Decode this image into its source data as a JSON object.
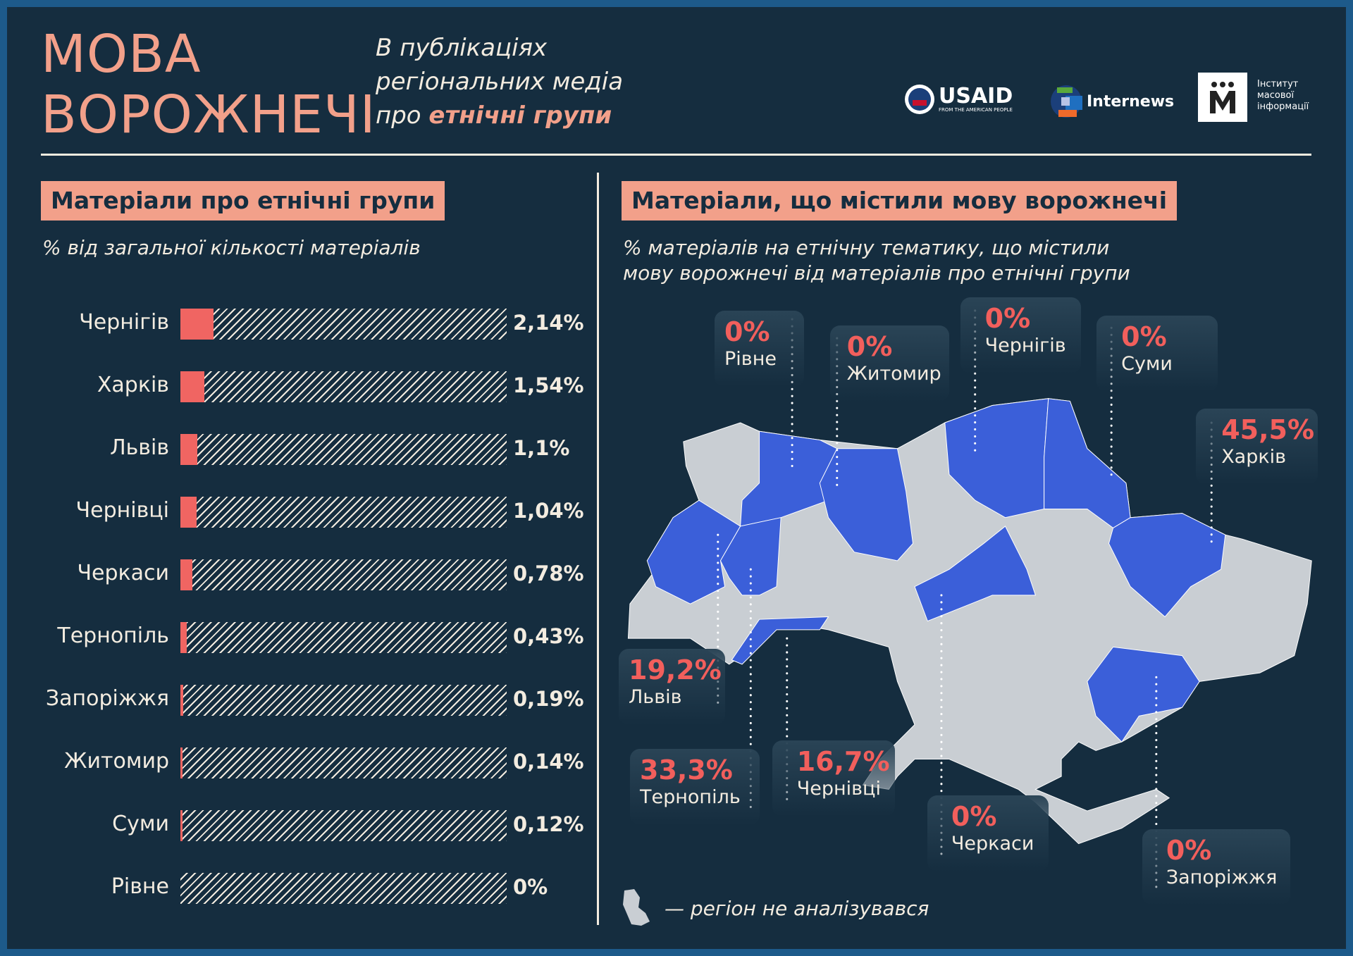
{
  "header": {
    "title_line1": "МОВА",
    "title_line2": "ВОРОЖНЕЧІ",
    "subtitle_line1": "В публікаціях",
    "subtitle_line2": "регіональних медіа",
    "subtitle_line3_prefix": "про ",
    "subtitle_line3_bold": "етнічні групи",
    "logos": {
      "usaid": "USAID",
      "usaid_tag": "FROM THE AMERICAN PEOPLE",
      "internews": "Internews",
      "imi_line1": "Інститут",
      "imi_line2": "масової",
      "imi_line3": "інформації"
    }
  },
  "left_panel": {
    "heading": "Матеріали про етнічні групи",
    "note": "% від загальної кількості матеріалів"
  },
  "right_panel": {
    "heading": "Матеріали, що містили мову ворожнечі",
    "note_line1": "% матеріалів на етнічну тематику, що містили",
    "note_line2": "мову ворожнечі від матеріалів про етнічні групи",
    "legend": "— регіон не аналізувався"
  },
  "colors": {
    "bg": "#152d3f",
    "accent": "#f2a08a",
    "bar": "#f06562",
    "highlight": "#3b5fd9",
    "not_analysed": "#c9ced3"
  },
  "chart_data": [
    {
      "type": "bar",
      "title": "Матеріали про етнічні групи",
      "subtitle": "% від загальної кількості матеріалів",
      "orientation": "horizontal",
      "categories": [
        "Чернігів",
        "Харків",
        "Львів",
        "Чернівці",
        "Черкаси",
        "Тернопіль",
        "Запоріжжя",
        "Житомир",
        "Суми",
        "Рівне"
      ],
      "values": [
        2.14,
        1.54,
        1.1,
        1.04,
        0.78,
        0.43,
        0.19,
        0.14,
        0.12,
        0
      ],
      "labels": [
        "2,14%",
        "1,54%",
        "1,1%",
        "1,04%",
        "0,78%",
        "0,43%",
        "0,19%",
        "0,14%",
        "0,12%",
        "0%"
      ],
      "xlim": [
        0,
        21
      ]
    },
    {
      "type": "map",
      "title": "Матеріали, що містили мову ворожнечі",
      "regions": [
        {
          "name": "Рівне",
          "value": 0,
          "label": "0%"
        },
        {
          "name": "Житомир",
          "value": 0,
          "label": "0%"
        },
        {
          "name": "Чернігів",
          "value": 0,
          "label": "0%"
        },
        {
          "name": "Суми",
          "value": 0,
          "label": "0%"
        },
        {
          "name": "Харків",
          "value": 45.5,
          "label": "45,5%"
        },
        {
          "name": "Львів",
          "value": 19.2,
          "label": "19,2%"
        },
        {
          "name": "Тернопіль",
          "value": 33.3,
          "label": "33,3%"
        },
        {
          "name": "Чернівці",
          "value": 16.7,
          "label": "16,7%"
        },
        {
          "name": "Черкаси",
          "value": 0,
          "label": "0%"
        },
        {
          "name": "Запоріжжя",
          "value": 0,
          "label": "0%"
        }
      ]
    }
  ]
}
